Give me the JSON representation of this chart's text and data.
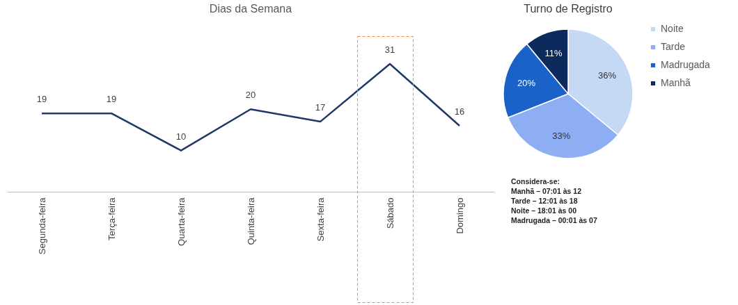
{
  "chart_data": [
    {
      "type": "line",
      "title": "Dias da Semana",
      "categories": [
        "Segunda-feira",
        "Terça-feira",
        "Quarta-feira",
        "Quinta-feira",
        "Sexta-feira",
        "Sábado",
        "Domingo"
      ],
      "series": [
        {
          "color": "#1f3864",
          "values": [
            19,
            19,
            10,
            20,
            17,
            31,
            16
          ]
        }
      ],
      "tick_labels": "x",
      "data_labels": true,
      "grid": false,
      "legend": false,
      "marker": "none",
      "line_style": "solid"
    },
    {
      "type": "pie",
      "title": "Turno de Registro",
      "categories": [
        "Noite",
        "Tarde",
        "Madrugada",
        "Manhã"
      ],
      "values": [
        36,
        33,
        20,
        11
      ],
      "colors": [
        "#c5d9f5",
        "#8eaef4",
        "#1b62c8",
        "#0c2a5c"
      ],
      "value_labels": [
        "36%",
        "33%",
        "20%",
        "11%"
      ],
      "legend": "right",
      "annotations": [
        "Considera-se:",
        "Manhã – 07:01 às 12",
        "Tarde – 12:01 às 18",
        "Noite – 18:01 às 00",
        "Madrugada – 00:01 às 07"
      ]
    }
  ]
}
